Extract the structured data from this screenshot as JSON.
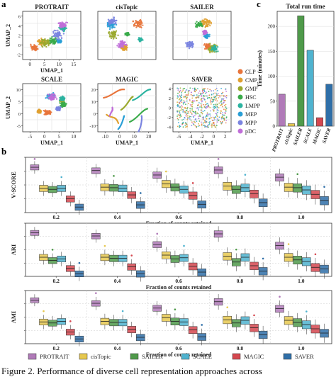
{
  "panel_labels": {
    "a": "a",
    "b": "b",
    "c": "c"
  },
  "caption": "Figure 2. Performance of diverse cell representation approaches across",
  "colors": {
    "methods": {
      "PROTRAIT": "#b07ab8",
      "cisTopic": "#e6c84f",
      "SAILER": "#4f9a4a",
      "SCALE": "#4fb3cf",
      "MAGIC": "#d5474f",
      "SAVER": "#2f6fa8"
    },
    "cell_types": {
      "CLP": "#e8743b",
      "CMP": "#e0a030",
      "GMP": "#9aa82c",
      "HSC": "#3aab4a",
      "LMPP": "#2bb3a0",
      "MEP": "#2a9fd6",
      "MPP": "#7a84e0",
      "pDC": "#c06ed8"
    }
  },
  "chart_data": [
    {
      "type": "scatter",
      "title": "PROTRAIT",
      "xlabel": "UMAP_1",
      "ylabel": "UMAP_2",
      "x_ticks": [
        "0",
        "5",
        "10",
        "15"
      ],
      "y_ticks": [
        "-2",
        "0",
        "2",
        "4",
        "6"
      ]
    },
    {
      "type": "scatter",
      "title": "cisTopic",
      "xlabel": "",
      "ylabel": "",
      "x_ticks": [],
      "y_ticks": []
    },
    {
      "type": "scatter",
      "title": "SAILER",
      "xlabel": "",
      "ylabel": "",
      "x_ticks": [],
      "y_ticks": []
    },
    {
      "type": "scatter",
      "title": "SCALE",
      "xlabel": "UMAP_1",
      "ylabel": "UMAP_2",
      "x_ticks": [
        "-5",
        "0",
        "5",
        "10"
      ],
      "y_ticks": [
        "-5",
        "0",
        "5",
        "10"
      ]
    },
    {
      "type": "scatter",
      "title": "MAGIC",
      "xlabel": "UMAP_1",
      "ylabel": "",
      "x_ticks": [
        "-10",
        "0",
        "10",
        "20"
      ],
      "y_ticks": [
        "-10",
        "0",
        "10",
        "20"
      ]
    },
    {
      "type": "scatter",
      "title": "SAVER",
      "xlabel": "UMAP_1",
      "ylabel": "",
      "x_ticks": [
        "-6",
        "-4",
        "-2",
        "0",
        "2"
      ],
      "y_ticks": [
        "-4",
        "-2",
        "0",
        "2",
        "4"
      ]
    },
    {
      "type": "bar",
      "title": "Total run time",
      "ylabel": "Time (minutes)",
      "ylim": [
        0,
        230
      ],
      "y_ticks": [
        "0",
        "50",
        "100",
        "150",
        "200"
      ],
      "categories": [
        "PROTRAIT",
        "cisTopic",
        "SAILER",
        "SCALE",
        "MAGIC",
        "SAVER"
      ],
      "values": [
        64,
        5,
        221,
        152,
        17,
        84
      ]
    },
    {
      "type": "box",
      "ylabel": "V-SCORE",
      "xlabel": "Fraction of counts retained",
      "ylim": [
        0,
        1
      ],
      "categories": [
        "0.2",
        "0.4",
        "0.6",
        "0.8",
        "1.0"
      ],
      "series": [
        {
          "name": "PROTRAIT",
          "medians": [
            0.82,
            0.76,
            0.68,
            0.77,
            0.64
          ]
        },
        {
          "name": "cisTopic",
          "medians": [
            0.44,
            0.46,
            0.52,
            0.48,
            0.46
          ]
        },
        {
          "name": "SAILER",
          "medians": [
            0.42,
            0.45,
            0.46,
            0.42,
            0.45
          ]
        },
        {
          "name": "SCALE",
          "medians": [
            0.44,
            0.44,
            0.42,
            0.45,
            0.41
          ]
        },
        {
          "name": "MAGIC",
          "medians": [
            0.25,
            0.32,
            0.31,
            0.34,
            0.33
          ]
        },
        {
          "name": "SAVER",
          "medians": [
            0.1,
            0.14,
            0.15,
            0.18,
            0.22
          ]
        }
      ]
    },
    {
      "type": "box",
      "ylabel": "ARI",
      "xlabel": "Fraction of counts retained",
      "ylim": [
        0,
        1
      ],
      "categories": [
        "0.2",
        "0.4",
        "0.6",
        "0.8",
        "1.0"
      ],
      "series": [
        {
          "name": "PROTRAIT",
          "medians": [
            0.82,
            0.76,
            0.6,
            0.8,
            0.58
          ]
        },
        {
          "name": "cisTopic",
          "medians": [
            0.36,
            0.36,
            0.4,
            0.38,
            0.36
          ]
        },
        {
          "name": "SAILER",
          "medians": [
            0.3,
            0.34,
            0.33,
            0.27,
            0.31
          ]
        },
        {
          "name": "SCALE",
          "medians": [
            0.33,
            0.34,
            0.35,
            0.36,
            0.28
          ]
        },
        {
          "name": "MAGIC",
          "medians": [
            0.15,
            0.18,
            0.19,
            0.2,
            0.17
          ]
        },
        {
          "name": "SAVER",
          "medians": [
            0.05,
            0.05,
            0.08,
            0.1,
            0.14
          ]
        }
      ]
    },
    {
      "type": "box",
      "ylabel": "AMI",
      "xlabel": "Fraction of counts retained",
      "ylim": [
        0,
        1
      ],
      "categories": [
        "0.2",
        "0.4",
        "0.6",
        "0.8",
        "1.0"
      ],
      "series": [
        {
          "name": "PROTRAIT",
          "medians": [
            0.82,
            0.76,
            0.67,
            0.79,
            0.66
          ]
        },
        {
          "name": "cisTopic",
          "medians": [
            0.41,
            0.42,
            0.49,
            0.45,
            0.44
          ]
        },
        {
          "name": "SAILER",
          "medians": [
            0.39,
            0.4,
            0.42,
            0.39,
            0.4
          ]
        },
        {
          "name": "SCALE",
          "medians": [
            0.42,
            0.4,
            0.41,
            0.44,
            0.36
          ]
        },
        {
          "name": "MAGIC",
          "medians": [
            0.22,
            0.27,
            0.26,
            0.3,
            0.28
          ]
        },
        {
          "name": "SAVER",
          "medians": [
            0.09,
            0.12,
            0.13,
            0.17,
            0.2
          ]
        }
      ]
    }
  ],
  "umap_legend": [
    "CLP",
    "CMP",
    "GMP",
    "HSC",
    "LMPP",
    "MEP",
    "MPP",
    "pDC"
  ],
  "method_legend": [
    "PROTRAIT",
    "cisTopic",
    "SAILER",
    "SCALE",
    "MAGIC",
    "SAVER"
  ]
}
